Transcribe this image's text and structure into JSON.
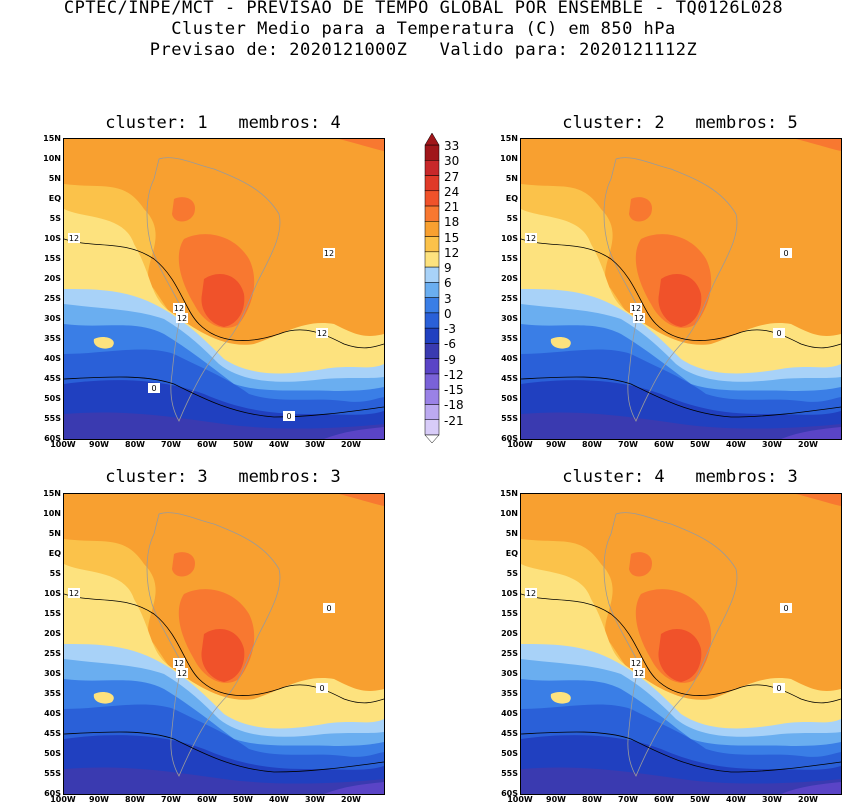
{
  "header": {
    "line1": "CPTEC/INPE/MCT - PREVISAO DE TEMPO GLOBAL POR ENSEMBLE - TQ0126L028",
    "line2": "Cluster Medio para a Temperatura (C) em 850 hPa",
    "line3": "Previsao de: 2020121000Z   Valido para: 2020121112Z"
  },
  "axes": {
    "lat_labels": [
      "15N",
      "10N",
      "5N",
      "EQ",
      "5S",
      "10S",
      "15S",
      "20S",
      "25S",
      "30S",
      "35S",
      "40S",
      "45S",
      "50S",
      "55S",
      "60S"
    ],
    "lon_labels": [
      "100W",
      "90W",
      "80W",
      "70W",
      "60W",
      "50W",
      "40W",
      "30W",
      "20W"
    ]
  },
  "colorbar": {
    "levels": [
      "33",
      "30",
      "27",
      "24",
      "21",
      "18",
      "15",
      "12",
      "9",
      "6",
      "3",
      "0",
      "-3",
      "-6",
      "-9",
      "-12",
      "-15",
      "-18",
      "-21"
    ],
    "colors": [
      "#a0161a",
      "#c8282a",
      "#e03a28",
      "#f0522a",
      "#f87830",
      "#f8a030",
      "#fbc24a",
      "#fde27e",
      "#a8d2f8",
      "#6aaef0",
      "#3a7ee6",
      "#2a60d8",
      "#2040c0",
      "#3a3ab0",
      "#5a44c6",
      "#7a62d8",
      "#9a82e6",
      "#bcaaf0",
      "#d8ccf8"
    ]
  },
  "panels": [
    {
      "title": "cluster: 1   membros: 4",
      "contour_labels": [
        "12",
        "12",
        "12",
        "12",
        "12",
        "0",
        "0"
      ]
    },
    {
      "title": "cluster: 2   membros: 5",
      "contour_labels": [
        "12",
        "12",
        "12",
        "0",
        "0"
      ]
    },
    {
      "title": "cluster: 3   membros: 3",
      "contour_labels": [
        "12",
        "12",
        "12",
        "0",
        "0"
      ]
    },
    {
      "title": "cluster: 4   membros: 3",
      "contour_labels": [
        "12",
        "12",
        "12",
        "0",
        "0"
      ]
    }
  ]
}
